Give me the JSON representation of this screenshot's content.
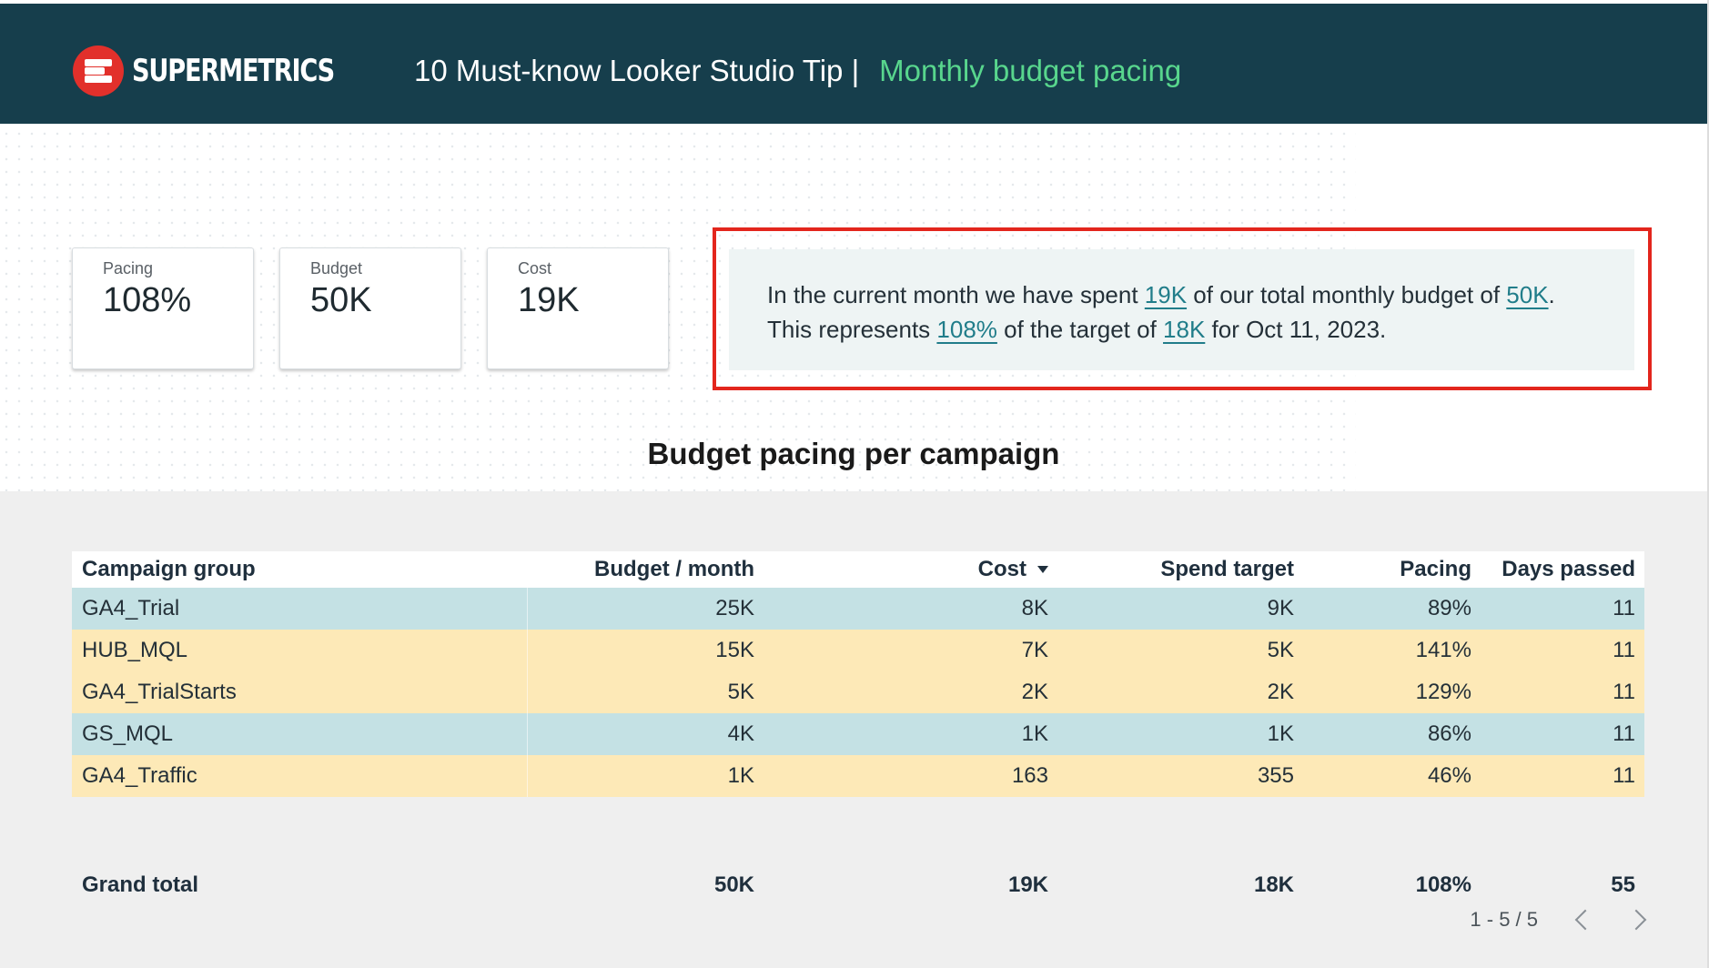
{
  "header": {
    "brand": "SUPERMETRICS",
    "title_prefix": "10 Must-know Looker Studio Tip |",
    "title_highlight": "Monthly budget pacing",
    "colors": {
      "background": "#163e4c",
      "highlight": "#58d68d",
      "logo": "#e2302b"
    }
  },
  "kpis": [
    {
      "label": "Pacing",
      "value": "108%"
    },
    {
      "label": "Budget",
      "value": "50K"
    },
    {
      "label": "Cost",
      "value": "19K"
    }
  ],
  "summary": {
    "l1_a": "In the current month we have spent ",
    "l1_spent": "19K",
    "l1_b": " of our total monthly budget of ",
    "l1_budget": "50K",
    "l1_c": ".",
    "l2_a": "This represents ",
    "l2_pacing": "108%",
    "l2_b": " of the target of ",
    "l2_target": "18K",
    "l2_c": " for Oct 11, 2023.",
    "colors": {
      "frame": "#e3261d",
      "link": "#217d8a",
      "background": "#eef4f4"
    }
  },
  "table": {
    "title": "Budget pacing per campaign",
    "headers": [
      "Campaign group",
      "Budget / month",
      "Cost",
      "Spend target",
      "Pacing",
      "Days passed"
    ],
    "sorted_column": "Cost",
    "rows": [
      {
        "cells": [
          "GA4_Trial",
          "25K",
          "8K",
          "9K",
          "89%",
          "11"
        ],
        "color": "#c4e1e4"
      },
      {
        "cells": [
          "HUB_MQL",
          "15K",
          "7K",
          "5K",
          "141%",
          "11"
        ],
        "color": "#fde9b7"
      },
      {
        "cells": [
          "GA4_TrialStarts",
          "5K",
          "2K",
          "2K",
          "129%",
          "11"
        ],
        "color": "#fde9b7"
      },
      {
        "cells": [
          "GS_MQL",
          "4K",
          "1K",
          "1K",
          "86%",
          "11"
        ],
        "color": "#c4e1e4"
      },
      {
        "cells": [
          "GA4_Traffic",
          "1K",
          "163",
          "355",
          "46%",
          "11"
        ],
        "color": "#fde9b7"
      }
    ],
    "total": [
      "Grand total",
      "50K",
      "19K",
      "18K",
      "108%",
      "55"
    ],
    "pagination": "1 - 5 / 5"
  }
}
